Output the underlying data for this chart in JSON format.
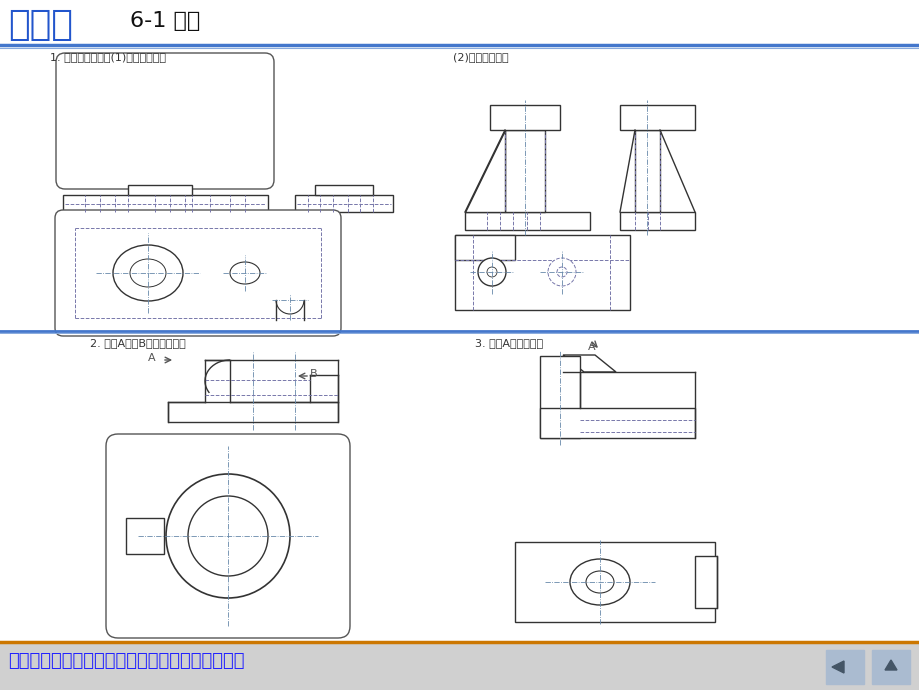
{
  "title_chinese": "第六章",
  "title_section": "6-1 视图",
  "title_color": "#2255cc",
  "title_section_color": "#111111",
  "bg_color": "#ffffff",
  "label1": "1. 补画基本视图。(1)补画俯视图。",
  "label2": "(2)补画右视图。",
  "label3": "2. 补画A向、B向局部视图。",
  "label4": "3. 补画A向斜视图。",
  "bottom_text": "请用鼠标点击需要解答的习题。或翻页寻找习题。",
  "bottom_text_color": "#2222ff",
  "bottom_bg": "#d8d8d8"
}
